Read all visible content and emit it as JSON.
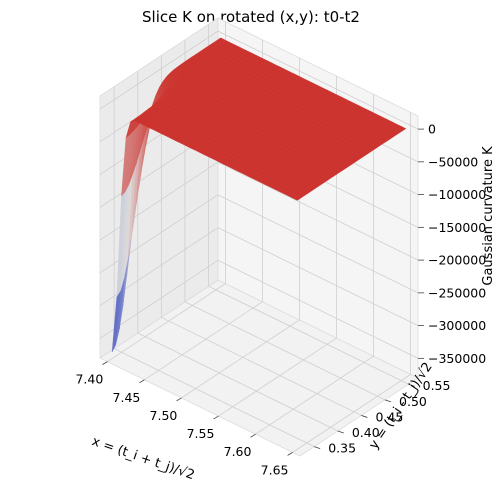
{
  "chart_data": {
    "type": "surface3d",
    "title": "Slice K on rotated (x,y): t0-t2",
    "xlabel": "x = (t_i + t_j)/√2",
    "ylabel": "y = (t_i - t_j)/√2",
    "zlabel": "Gaussian curvature K",
    "xlim": [
      7.39,
      7.66
    ],
    "ylim": [
      0.32,
      0.57
    ],
    "zlim": [
      -380000,
      20000
    ],
    "x_ticks": [
      "7.40",
      "7.45",
      "7.50",
      "7.55",
      "7.60",
      "7.65"
    ],
    "y_ticks": [
      "0.35",
      "0.40",
      "0.45",
      "0.50",
      "0.55"
    ],
    "z_ticks": [
      "0",
      "−50000",
      "−100000",
      "−150000",
      "−200000",
      "−250000",
      "−300000",
      "−350000"
    ],
    "x_tick_values": [
      7.4,
      7.45,
      7.5,
      7.55,
      7.6,
      7.65
    ],
    "y_tick_values": [
      0.35,
      0.4,
      0.45,
      0.5,
      0.55
    ],
    "z_tick_values": [
      0,
      -50000,
      -100000,
      -150000,
      -200000,
      -250000,
      -300000,
      -350000
    ],
    "surface": {
      "x_range": [
        7.4,
        7.65
      ],
      "y_range": [
        0.33,
        0.56
      ],
      "plateau_K": 0,
      "minimum_K": -370000,
      "minimum_near": {
        "x": 7.4,
        "y": 0.33
      },
      "colormap": "coolwarm"
    },
    "grid": true
  }
}
